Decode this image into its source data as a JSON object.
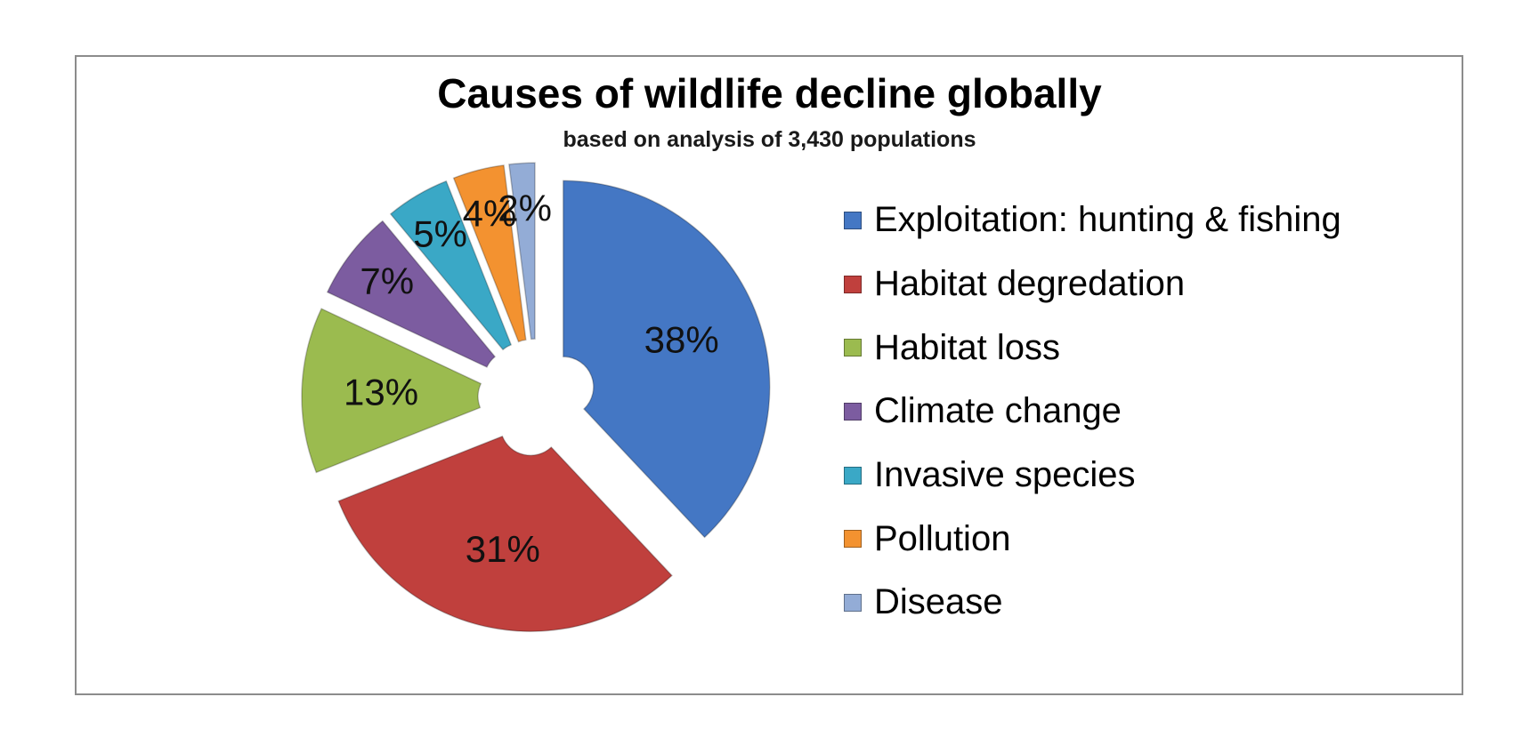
{
  "chart_data": {
    "type": "pie",
    "title": "Causes of wildlife decline globally",
    "subtitle": "based on analysis of 3,430 populations",
    "legend_position": "right",
    "slices": [
      {
        "name": "Exploitation: hunting & fishing",
        "value": 38,
        "label": "38%",
        "color": "#4477c4"
      },
      {
        "name": "Habitat degredation",
        "value": 31,
        "label": "31%",
        "color": "#c0403d"
      },
      {
        "name": "Habitat loss",
        "value": 13,
        "label": "13%",
        "color": "#9bbb4f"
      },
      {
        "name": "Climate change",
        "value": 7,
        "label": "7%",
        "color": "#7c5ca0"
      },
      {
        "name": "Invasive species",
        "value": 5,
        "label": "5%",
        "color": "#3aa8c6"
      },
      {
        "name": "Pollution",
        "value": 4,
        "label": "4%",
        "color": "#f39230"
      },
      {
        "name": "Disease",
        "value": 2,
        "label": "2%",
        "color": "#93acd6"
      }
    ]
  }
}
